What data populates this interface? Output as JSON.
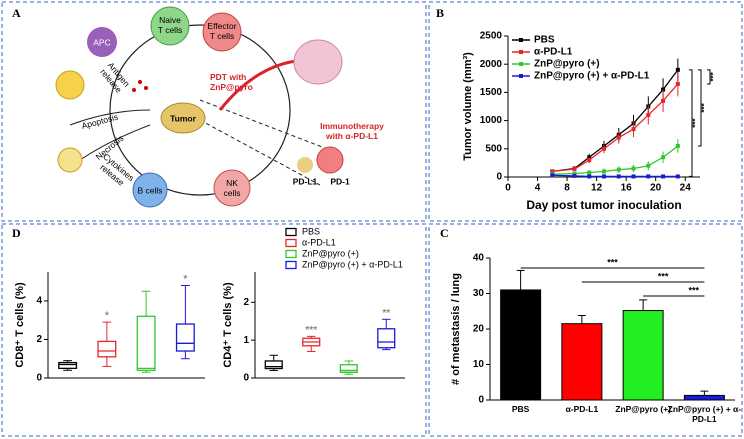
{
  "panels": {
    "a": "A",
    "b": "B",
    "c": "C",
    "d": "D"
  },
  "diagram": {
    "naive": [
      "Naive",
      "T cells"
    ],
    "effector": [
      "Effector",
      "T cells"
    ],
    "apc": "APC",
    "antigen": [
      "Antigen",
      "release"
    ],
    "pdt": [
      "PDT with",
      "ZnP@pyro"
    ],
    "tumor": "Tumor",
    "apoptosis": "Apoptosis",
    "necrosis": "Necrosis",
    "cytokines": [
      "Cytokines",
      "release"
    ],
    "bcells": "B cells",
    "nkcells": [
      "NK",
      "cells"
    ],
    "immuno": [
      "Immunotherapy",
      "with α-PD-L1"
    ],
    "pdl1": "PD-L1",
    "pd1": "PD-1"
  },
  "chart_data": [
    {
      "type": "line",
      "xlabel": "Day post tumor inoculation",
      "ylabel": "Tumor volume (mm³)",
      "x": [
        6,
        9,
        11,
        13,
        15,
        17,
        19,
        21,
        23
      ],
      "xlim": [
        0,
        26
      ],
      "xticks": [
        0,
        4,
        8,
        12,
        16,
        20,
        24
      ],
      "ylim": [
        0,
        2500
      ],
      "yticks": [
        0,
        500,
        1000,
        1500,
        2000,
        2500
      ],
      "series": [
        {
          "name": "PBS",
          "color": "#000000",
          "values": [
            100,
            150,
            350,
            550,
            750,
            950,
            1250,
            1550,
            1900
          ],
          "errors": [
            20,
            30,
            60,
            90,
            120,
            150,
            180,
            200,
            200
          ]
        },
        {
          "name": "α-PD-L1",
          "color": "#e8262a",
          "values": [
            100,
            140,
            300,
            500,
            700,
            850,
            1100,
            1350,
            1650
          ],
          "errors": [
            20,
            30,
            50,
            80,
            110,
            140,
            170,
            200,
            220
          ]
        },
        {
          "name": "ZnP@pyro (+)",
          "color": "#2fc82f",
          "values": [
            50,
            60,
            80,
            100,
            130,
            150,
            200,
            350,
            550
          ],
          "errors": [
            10,
            20,
            30,
            50,
            60,
            70,
            80,
            100,
            120
          ]
        },
        {
          "name": "ZnP@pyro (+) + α-PD-L1",
          "color": "#1a1adb",
          "values": [
            30,
            20,
            10,
            10,
            10,
            10,
            10,
            10,
            10
          ],
          "errors": [
            10,
            10,
            5,
            5,
            5,
            5,
            5,
            5,
            5
          ]
        }
      ],
      "annotations": [
        "***",
        "***",
        "***"
      ]
    },
    {
      "type": "box",
      "ylabel": "CD8⁺ T cells (%)",
      "ylim": [
        0,
        5.5
      ],
      "yticks": [
        0,
        2,
        4
      ],
      "series": [
        {
          "name": "PBS",
          "color": "#000000",
          "min": 0.4,
          "q1": 0.5,
          "median": 0.7,
          "q3": 0.8,
          "max": 0.9
        },
        {
          "name": "α-PD-L1",
          "color": "#e8262a",
          "min": 0.6,
          "q1": 1.1,
          "median": 1.4,
          "q3": 1.9,
          "max": 2.9,
          "annotation": "*"
        },
        {
          "name": "ZnP@pyro (+)",
          "color": "#2fc82f",
          "min": 0.3,
          "q1": 0.4,
          "median": 0.5,
          "q3": 3.2,
          "max": 4.5
        },
        {
          "name": "ZnP@pyro (+) + α-PD-L1",
          "color": "#1a1adb",
          "min": 1.0,
          "q1": 1.4,
          "median": 1.8,
          "q3": 2.8,
          "max": 4.8,
          "annotation": "*"
        }
      ]
    },
    {
      "type": "box",
      "ylabel": "CD4⁺ T cells (%)",
      "ylim": [
        0,
        2.8
      ],
      "yticks": [
        0,
        1,
        2
      ],
      "series": [
        {
          "color": "#000000",
          "min": 0.2,
          "q1": 0.25,
          "median": 0.3,
          "q3": 0.45,
          "max": 0.6
        },
        {
          "color": "#e8262a",
          "min": 0.7,
          "q1": 0.85,
          "median": 0.95,
          "q3": 1.05,
          "max": 1.1,
          "annotation": "***"
        },
        {
          "color": "#2fc82f",
          "min": 0.1,
          "q1": 0.15,
          "median": 0.2,
          "q3": 0.35,
          "max": 0.45
        },
        {
          "color": "#1a1adb",
          "min": 0.75,
          "q1": 0.8,
          "median": 0.95,
          "q3": 1.3,
          "max": 1.55,
          "annotation": "**"
        }
      ]
    },
    {
      "type": "bar",
      "ylabel": "# of metastasis / lung",
      "categories": [
        "PBS",
        "α-PD-L1",
        "ZnP@pyro (+)",
        "ZnP@pyro (+) + α-PD-L1"
      ],
      "values": [
        31,
        21.5,
        25.2,
        1.3
      ],
      "errors": [
        5.5,
        2.3,
        3,
        1.2
      ],
      "colors": [
        "#000000",
        "#ff0000",
        "#22ee22",
        "#1a1adb"
      ],
      "ylim": [
        0,
        40
      ],
      "yticks": [
        0,
        10,
        20,
        30,
        40
      ],
      "annotations": [
        "***",
        "***",
        "***"
      ]
    }
  ]
}
